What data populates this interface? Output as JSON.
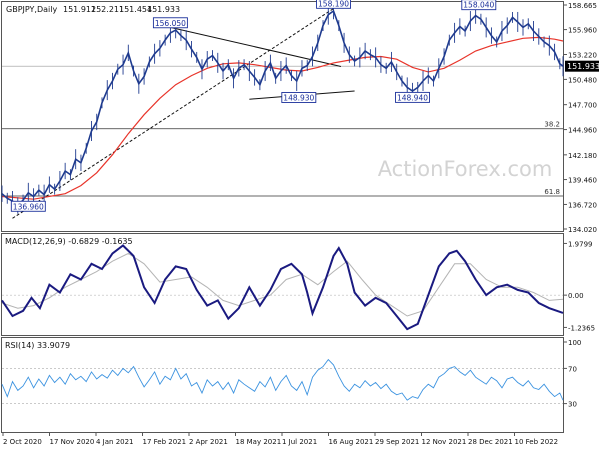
{
  "chart_data": {
    "type": "line",
    "title": "GBPJPY,Daily",
    "ohlc": [
      "151.912",
      "152.211",
      "151.454",
      "151.933"
    ],
    "last_price": "151.933",
    "watermark": "ActionForex.com",
    "x_labels": [
      "2 Oct 2020",
      "17 Nov 2020",
      "4 Jan 2021",
      "17 Feb 2021",
      "2 Apr 2021",
      "18 May 2021",
      "1 Jul 2021",
      "16 Aug 2021",
      "29 Sep 2021",
      "12 Nov 2021",
      "28 Dec 2021",
      "10 Feb 2022"
    ],
    "price_axis": [
      "158.665",
      "155.960",
      "153.220",
      "150.480",
      "147.700",
      "144.960",
      "142.180",
      "139.460",
      "136.720",
      "134.020"
    ],
    "price_range": [
      134.02,
      158.665
    ],
    "price_points": [
      [
        0,
        137.9
      ],
      [
        5,
        137.4
      ],
      [
        10,
        137.1
      ],
      [
        15,
        136.6
      ],
      [
        20,
        137.2
      ],
      [
        25,
        138.0
      ],
      [
        30,
        137.6
      ],
      [
        35,
        138.3
      ],
      [
        40,
        137.8
      ],
      [
        45,
        138.9
      ],
      [
        50,
        138.4
      ],
      [
        55,
        139.3
      ],
      [
        60,
        140.4
      ],
      [
        65,
        140.0
      ],
      [
        70,
        141.7
      ],
      [
        75,
        141.3
      ],
      [
        80,
        142.9
      ],
      [
        85,
        144.8
      ],
      [
        90,
        145.8
      ],
      [
        95,
        147.9
      ],
      [
        100,
        149.3
      ],
      [
        105,
        150.3
      ],
      [
        110,
        151.6
      ],
      [
        115,
        152.1
      ],
      [
        120,
        153.4
      ],
      [
        125,
        151.4
      ],
      [
        130,
        150.0
      ],
      [
        135,
        150.8
      ],
      [
        140,
        152.4
      ],
      [
        145,
        153.3
      ],
      [
        150,
        153.9
      ],
      [
        155,
        154.8
      ],
      [
        160,
        155.6
      ],
      [
        165,
        155.9
      ],
      [
        170,
        155.3
      ],
      [
        175,
        154.8
      ],
      [
        180,
        153.8
      ],
      [
        185,
        152.9
      ],
      [
        190,
        151.6
      ],
      [
        195,
        152.7
      ],
      [
        200,
        153.1
      ],
      [
        205,
        152.3
      ],
      [
        210,
        151.4
      ],
      [
        215,
        152.1
      ],
      [
        220,
        150.6
      ],
      [
        225,
        151.7
      ],
      [
        230,
        152.1
      ],
      [
        235,
        151.4
      ],
      [
        240,
        150.7
      ],
      [
        245,
        149.9
      ],
      [
        250,
        151.4
      ],
      [
        255,
        152.3
      ],
      [
        260,
        150.6
      ],
      [
        265,
        151.4
      ],
      [
        270,
        152.0
      ],
      [
        275,
        150.9
      ],
      [
        280,
        150.3
      ],
      [
        285,
        151.7
      ],
      [
        290,
        152.0
      ],
      [
        295,
        153.0
      ],
      [
        300,
        154.5
      ],
      [
        305,
        156.4
      ],
      [
        310,
        157.6
      ],
      [
        315,
        158.0
      ],
      [
        320,
        156.4
      ],
      [
        325,
        154.5
      ],
      [
        330,
        153.2
      ],
      [
        335,
        152.5
      ],
      [
        340,
        152.9
      ],
      [
        345,
        153.6
      ],
      [
        350,
        153.2
      ],
      [
        355,
        152.9
      ],
      [
        360,
        152.1
      ],
      [
        365,
        151.7
      ],
      [
        370,
        152.4
      ],
      [
        375,
        151.3
      ],
      [
        380,
        150.3
      ],
      [
        385,
        149.6
      ],
      [
        390,
        149.2
      ],
      [
        395,
        149.6
      ],
      [
        400,
        150.3
      ],
      [
        405,
        150.9
      ],
      [
        410,
        150.3
      ],
      [
        415,
        151.7
      ],
      [
        420,
        153.0
      ],
      [
        425,
        154.8
      ],
      [
        430,
        155.6
      ],
      [
        435,
        156.3
      ],
      [
        440,
        155.8
      ],
      [
        445,
        156.9
      ],
      [
        450,
        157.5
      ],
      [
        455,
        157.1
      ],
      [
        460,
        156.2
      ],
      [
        465,
        155.3
      ],
      [
        470,
        154.6
      ],
      [
        475,
        155.8
      ],
      [
        480,
        156.4
      ],
      [
        485,
        157.3
      ],
      [
        490,
        156.8
      ],
      [
        495,
        156.2
      ],
      [
        500,
        156.6
      ],
      [
        505,
        155.8
      ],
      [
        510,
        155.2
      ],
      [
        515,
        154.6
      ],
      [
        520,
        154.2
      ],
      [
        525,
        153.5
      ],
      [
        530,
        152.2
      ],
      [
        533,
        151.93
      ]
    ],
    "ma_points": [
      [
        0,
        137.6
      ],
      [
        30,
        137.3
      ],
      [
        60,
        137.9
      ],
      [
        75,
        138.8
      ],
      [
        90,
        140.2
      ],
      [
        105,
        142.2
      ],
      [
        120,
        144.5
      ],
      [
        135,
        146.6
      ],
      [
        150,
        148.4
      ],
      [
        165,
        149.9
      ],
      [
        180,
        150.9
      ],
      [
        195,
        151.7
      ],
      [
        210,
        152.2
      ],
      [
        225,
        152.3
      ],
      [
        240,
        152.1
      ],
      [
        255,
        151.8
      ],
      [
        270,
        151.5
      ],
      [
        285,
        151.4
      ],
      [
        300,
        151.8
      ],
      [
        315,
        152.3
      ],
      [
        330,
        152.6
      ],
      [
        345,
        152.9
      ],
      [
        360,
        153.0
      ],
      [
        375,
        152.7
      ],
      [
        390,
        151.8
      ],
      [
        405,
        151.3
      ],
      [
        420,
        151.7
      ],
      [
        435,
        152.6
      ],
      [
        450,
        153.6
      ],
      [
        465,
        154.2
      ],
      [
        480,
        154.6
      ],
      [
        495,
        155.0
      ],
      [
        510,
        155.1
      ],
      [
        525,
        154.9
      ],
      [
        533,
        154.7
      ]
    ],
    "annotations": [
      {
        "text": "156.050",
        "x": 160,
        "y": 156.05
      },
      {
        "text": "158.190",
        "x": 315,
        "y": 158.19
      },
      {
        "text": "158.040",
        "x": 453,
        "y": 158.04
      },
      {
        "text": "148.930",
        "x": 282,
        "y": 148.93
      },
      {
        "text": "148.940",
        "x": 390,
        "y": 148.94
      },
      {
        "text": "136.960",
        "x": 25,
        "y": 136.96
      }
    ],
    "fib_levels": [
      {
        "label": "38.2",
        "value": 145.05
      },
      {
        "label": "61.8",
        "value": 137.65
      }
    ],
    "trendlines": [
      {
        "name": "upper-wedge",
        "points": [
          [
            160,
            156.2
          ],
          [
            322,
            151.9
          ]
        ]
      },
      {
        "name": "lower-wedge",
        "points": [
          [
            235,
            148.3
          ],
          [
            335,
            149.2
          ]
        ]
      },
      {
        "name": "channel-dashed",
        "points": [
          [
            10,
            135.2
          ],
          [
            318,
            158.5
          ]
        ]
      }
    ],
    "macd": {
      "label": "MACD(12,26,9) -0.6829 -0.1635",
      "axis": [
        "1.9799",
        "0.00",
        "-1.2365"
      ],
      "range": [
        -1.45,
        2.15
      ],
      "line": [
        [
          0,
          -0.2
        ],
        [
          10,
          -0.8
        ],
        [
          20,
          -0.6
        ],
        [
          28,
          -0.1
        ],
        [
          36,
          -0.5
        ],
        [
          45,
          0.4
        ],
        [
          55,
          0.1
        ],
        [
          65,
          0.8
        ],
        [
          75,
          0.6
        ],
        [
          85,
          1.2
        ],
        [
          95,
          1.0
        ],
        [
          105,
          1.6
        ],
        [
          115,
          1.9
        ],
        [
          125,
          1.5
        ],
        [
          135,
          0.3
        ],
        [
          145,
          -0.3
        ],
        [
          155,
          0.6
        ],
        [
          165,
          1.1
        ],
        [
          175,
          1.0
        ],
        [
          185,
          0.2
        ],
        [
          195,
          -0.4
        ],
        [
          205,
          -0.2
        ],
        [
          215,
          -0.9
        ],
        [
          225,
          -0.5
        ],
        [
          235,
          0.3
        ],
        [
          245,
          -0.4
        ],
        [
          255,
          0.2
        ],
        [
          265,
          1.0
        ],
        [
          275,
          1.2
        ],
        [
          285,
          0.8
        ],
        [
          290,
          0.1
        ],
        [
          295,
          -0.7
        ],
        [
          305,
          0.3
        ],
        [
          315,
          1.5
        ],
        [
          320,
          1.8
        ],
        [
          328,
          1.2
        ],
        [
          335,
          0.1
        ],
        [
          345,
          -0.4
        ],
        [
          355,
          -0.1
        ],
        [
          365,
          -0.3
        ],
        [
          375,
          -0.8
        ],
        [
          385,
          -1.3
        ],
        [
          395,
          -1.1
        ],
        [
          405,
          0.0
        ],
        [
          415,
          1.1
        ],
        [
          425,
          1.6
        ],
        [
          432,
          1.7
        ],
        [
          440,
          1.3
        ],
        [
          450,
          0.6
        ],
        [
          460,
          0.0
        ],
        [
          470,
          0.3
        ],
        [
          480,
          0.4
        ],
        [
          490,
          0.2
        ],
        [
          500,
          0.1
        ],
        [
          510,
          -0.3
        ],
        [
          520,
          -0.5
        ],
        [
          533,
          -0.68
        ]
      ],
      "signal": [
        [
          0,
          -0.3
        ],
        [
          15,
          -0.5
        ],
        [
          30,
          -0.4
        ],
        [
          45,
          -0.1
        ],
        [
          60,
          0.3
        ],
        [
          75,
          0.6
        ],
        [
          90,
          0.9
        ],
        [
          105,
          1.3
        ],
        [
          120,
          1.6
        ],
        [
          135,
          1.2
        ],
        [
          150,
          0.5
        ],
        [
          165,
          0.6
        ],
        [
          180,
          0.7
        ],
        [
          195,
          0.3
        ],
        [
          210,
          -0.2
        ],
        [
          225,
          -0.4
        ],
        [
          240,
          -0.2
        ],
        [
          255,
          0.0
        ],
        [
          270,
          0.6
        ],
        [
          285,
          0.8
        ],
        [
          300,
          0.4
        ],
        [
          315,
          0.9
        ],
        [
          328,
          1.3
        ],
        [
          342,
          0.6
        ],
        [
          355,
          0.0
        ],
        [
          370,
          -0.4
        ],
        [
          385,
          -0.8
        ],
        [
          400,
          -0.6
        ],
        [
          415,
          0.3
        ],
        [
          430,
          1.2
        ],
        [
          445,
          1.2
        ],
        [
          460,
          0.6
        ],
        [
          475,
          0.3
        ],
        [
          490,
          0.3
        ],
        [
          505,
          0.1
        ],
        [
          520,
          -0.2
        ],
        [
          533,
          -0.16
        ]
      ]
    },
    "rsi": {
      "label": "RSI(14) 33.9079",
      "axis": [
        "100",
        "70",
        "30",
        "0"
      ],
      "range": [
        0,
        100
      ],
      "levels": [
        70,
        30
      ],
      "line": [
        [
          0,
          52
        ],
        [
          5,
          38
        ],
        [
          10,
          55
        ],
        [
          15,
          45
        ],
        [
          20,
          50
        ],
        [
          25,
          60
        ],
        [
          30,
          48
        ],
        [
          35,
          58
        ],
        [
          40,
          50
        ],
        [
          45,
          62
        ],
        [
          50,
          54
        ],
        [
          55,
          60
        ],
        [
          60,
          52
        ],
        [
          65,
          64
        ],
        [
          70,
          57
        ],
        [
          75,
          61
        ],
        [
          80,
          55
        ],
        [
          85,
          66
        ],
        [
          90,
          58
        ],
        [
          95,
          63
        ],
        [
          100,
          59
        ],
        [
          105,
          68
        ],
        [
          110,
          62
        ],
        [
          115,
          70
        ],
        [
          120,
          65
        ],
        [
          125,
          72
        ],
        [
          130,
          60
        ],
        [
          135,
          49
        ],
        [
          140,
          57
        ],
        [
          145,
          66
        ],
        [
          150,
          52
        ],
        [
          155,
          61
        ],
        [
          160,
          57
        ],
        [
          165,
          70
        ],
        [
          170,
          58
        ],
        [
          175,
          64
        ],
        [
          180,
          50
        ],
        [
          185,
          54
        ],
        [
          190,
          42
        ],
        [
          195,
          57
        ],
        [
          200,
          50
        ],
        [
          205,
          55
        ],
        [
          210,
          46
        ],
        [
          215,
          54
        ],
        [
          220,
          42
        ],
        [
          225,
          57
        ],
        [
          230,
          52
        ],
        [
          235,
          48
        ],
        [
          240,
          44
        ],
        [
          245,
          55
        ],
        [
          250,
          49
        ],
        [
          255,
          60
        ],
        [
          260,
          45
        ],
        [
          265,
          55
        ],
        [
          270,
          62
        ],
        [
          275,
          50
        ],
        [
          280,
          45
        ],
        [
          285,
          55
        ],
        [
          290,
          40
        ],
        [
          295,
          60
        ],
        [
          300,
          68
        ],
        [
          305,
          72
        ],
        [
          310,
          80
        ],
        [
          315,
          74
        ],
        [
          320,
          61
        ],
        [
          325,
          50
        ],
        [
          330,
          44
        ],
        [
          335,
          52
        ],
        [
          340,
          48
        ],
        [
          345,
          56
        ],
        [
          350,
          50
        ],
        [
          355,
          54
        ],
        [
          360,
          47
        ],
        [
          365,
          52
        ],
        [
          370,
          44
        ],
        [
          375,
          40
        ],
        [
          380,
          42
        ],
        [
          385,
          34
        ],
        [
          390,
          38
        ],
        [
          395,
          36
        ],
        [
          400,
          46
        ],
        [
          405,
          52
        ],
        [
          410,
          48
        ],
        [
          415,
          60
        ],
        [
          420,
          64
        ],
        [
          425,
          70
        ],
        [
          430,
          72
        ],
        [
          435,
          66
        ],
        [
          440,
          62
        ],
        [
          445,
          68
        ],
        [
          450,
          60
        ],
        [
          455,
          56
        ],
        [
          460,
          52
        ],
        [
          465,
          60
        ],
        [
          470,
          56
        ],
        [
          475,
          48
        ],
        [
          480,
          58
        ],
        [
          485,
          60
        ],
        [
          490,
          54
        ],
        [
          495,
          50
        ],
        [
          500,
          56
        ],
        [
          505,
          48
        ],
        [
          510,
          46
        ],
        [
          515,
          52
        ],
        [
          520,
          44
        ],
        [
          525,
          38
        ],
        [
          530,
          42
        ],
        [
          533,
          33.9
        ]
      ]
    },
    "colors": {
      "price": "#1f3b8f",
      "ma": "#e8342a",
      "macd": "#1a1a80",
      "signal": "#b4b4b4",
      "rsi": "#3c93e0",
      "grid": "#555555",
      "watermark": "#d3d3d3",
      "label_box": "#1a2f9a"
    }
  }
}
